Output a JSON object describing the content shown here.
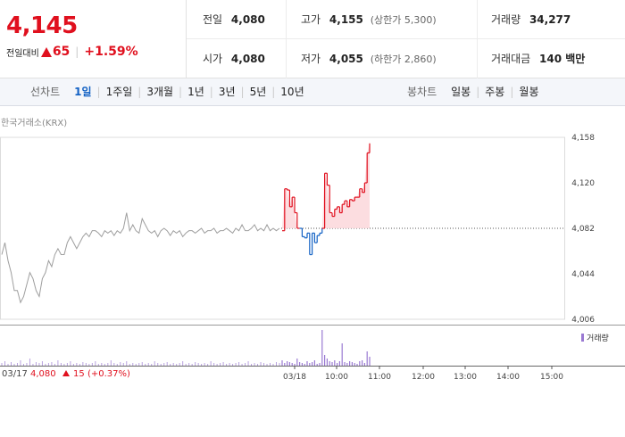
{
  "quote": {
    "price": "4,145",
    "change_label": "전일대비",
    "change_value": "65",
    "change_pct": "+1.59%",
    "prev_close_label": "전일",
    "prev_close": "4,080",
    "high_label": "고가",
    "high": "4,155",
    "upper_limit": "(상한가 5,300)",
    "volume_label": "거래량",
    "volume": "34,277",
    "open_label": "시가",
    "open": "4,080",
    "low_label": "저가",
    "low": "4,055",
    "lower_limit": "(하한가 2,860)",
    "turnover_label": "거래대금",
    "turnover": "140 백만"
  },
  "tabs": {
    "line_title": "선차트",
    "line_periods": [
      "1일",
      "1주일",
      "3개월",
      "1년",
      "3년",
      "5년",
      "10년"
    ],
    "candle_title": "봉차트",
    "candle_periods": [
      "일봉",
      "주봉",
      "월봉"
    ]
  },
  "source": "한국거래소(KRX)",
  "legend_volume": "거래량",
  "prev_info": {
    "date": "03/17",
    "price": "4,080",
    "change": "15",
    "pct": "(+0.37%)"
  },
  "colors": {
    "up": "#e0101e",
    "down": "#1261c4",
    "prev_line": "#9e9e9e",
    "volume": "#9a79d2"
  },
  "chart_data": {
    "type": "line",
    "y_ticks": [
      "4,158",
      "4,120",
      "4,082",
      "4,044",
      "4,006"
    ],
    "ylim": [
      4006,
      4158
    ],
    "reference_price": 4082,
    "x_labels": [
      "03/17",
      "03/18",
      "10:00",
      "11:00",
      "12:00",
      "13:00",
      "14:00",
      "15:00"
    ],
    "prev_day_series": [
      4060,
      4070,
      4055,
      4045,
      4030,
      4030,
      4020,
      4025,
      4035,
      4045,
      4040,
      4030,
      4025,
      4040,
      4045,
      4055,
      4050,
      4060,
      4065,
      4060,
      4060,
      4070,
      4075,
      4070,
      4065,
      4070,
      4075,
      4078,
      4075,
      4080,
      4080,
      4078,
      4075,
      4080,
      4078,
      4080,
      4076,
      4080,
      4078,
      4082,
      4095,
      4080,
      4085,
      4080,
      4078,
      4090,
      4085,
      4080,
      4078,
      4080,
      4075,
      4080,
      4082,
      4080,
      4076,
      4080,
      4078,
      4080,
      4075,
      4078,
      4080,
      4080,
      4078,
      4080,
      4082,
      4078,
      4080,
      4080,
      4082,
      4078,
      4080,
      4080,
      4082,
      4080,
      4078,
      4082,
      4080,
      4085,
      4080,
      4080,
      4082,
      4085,
      4080,
      4082,
      4080,
      4085,
      4080,
      4082,
      4080,
      4082
    ],
    "today_series": [
      4080,
      4115,
      4114,
      4100,
      4108,
      4095,
      4082,
      4082,
      4075,
      4074,
      4078,
      4060,
      4078,
      4070,
      4076,
      4078,
      4082,
      4128,
      4118,
      4095,
      4092,
      4098,
      4100,
      4095,
      4102,
      4105,
      4100,
      4106,
      4105,
      4108,
      4108,
      4115,
      4112,
      4120,
      4145,
      4153
    ],
    "volume_prev": [
      3,
      5,
      2,
      4,
      2,
      3,
      6,
      2,
      3,
      8,
      2,
      4,
      3,
      5,
      2,
      3,
      4,
      2,
      6,
      3,
      2,
      3,
      5,
      2,
      3,
      2,
      4,
      3,
      2,
      3,
      5,
      2,
      3,
      2,
      3,
      6,
      3,
      2,
      4,
      3,
      5,
      2,
      3,
      2,
      3,
      4,
      2,
      3,
      2,
      5,
      3,
      2,
      3,
      4,
      2,
      3,
      2,
      3,
      5,
      2,
      3,
      2,
      4,
      3,
      2,
      3,
      2,
      5,
      3,
      2,
      3,
      4,
      2,
      3,
      2,
      3,
      4,
      2,
      3,
      5,
      2,
      3,
      2,
      4,
      3,
      2,
      3,
      2,
      4,
      3
    ],
    "volume_today": [
      6,
      3,
      5,
      4,
      3,
      2,
      8,
      4,
      3,
      2,
      5,
      3,
      4,
      6,
      2,
      3,
      40,
      12,
      8,
      5,
      4,
      6,
      3,
      5,
      25,
      4,
      3,
      5,
      4,
      3,
      2,
      5,
      6,
      3,
      16,
      10
    ]
  }
}
